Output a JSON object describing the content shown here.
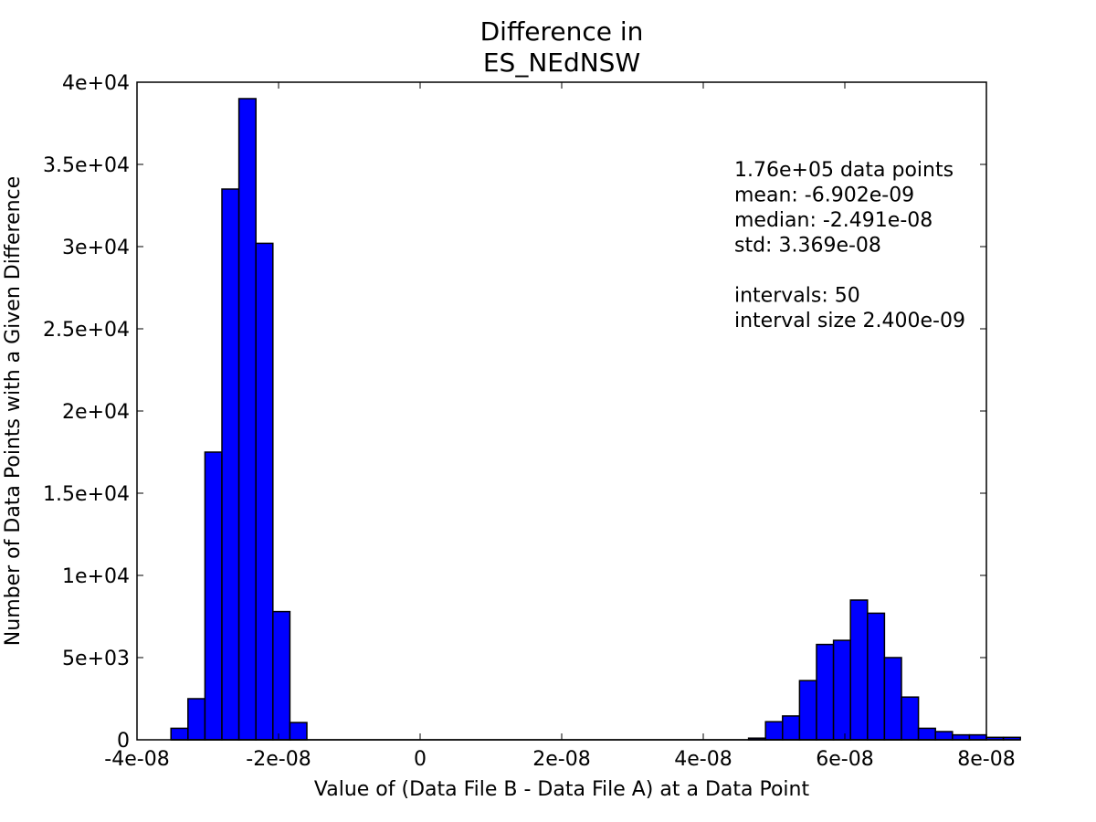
{
  "chart_data": {
    "type": "bar",
    "title_lines": [
      "Difference in",
      "ES_NEdNSW"
    ],
    "xlabel": "Value of (Data File B - Data File A) at a Data Point",
    "ylabel": "Number of Data Points with a Given Difference",
    "xlim": [
      -4e-08,
      8e-08
    ],
    "ylim": [
      0,
      40000
    ],
    "x_ticks": [
      {
        "value": -4e-08,
        "label": "-4e-08"
      },
      {
        "value": -2e-08,
        "label": "-2e-08"
      },
      {
        "value": 0,
        "label": "0"
      },
      {
        "value": 2e-08,
        "label": "2e-08"
      },
      {
        "value": 4e-08,
        "label": "4e-08"
      },
      {
        "value": 6e-08,
        "label": "6e-08"
      },
      {
        "value": 8e-08,
        "label": "8e-08"
      }
    ],
    "y_ticks": [
      {
        "value": 0,
        "label": "0"
      },
      {
        "value": 5000,
        "label": "5e+03"
      },
      {
        "value": 10000,
        "label": "1e+04"
      },
      {
        "value": 15000,
        "label": "1.5e+04"
      },
      {
        "value": 20000,
        "label": "2e+04"
      },
      {
        "value": 25000,
        "label": "2.5e+04"
      },
      {
        "value": 30000,
        "label": "3e+04"
      },
      {
        "value": 35000,
        "label": "3.5e+04"
      },
      {
        "value": 40000,
        "label": "4e+04"
      }
    ],
    "bin_start": -3.52e-08,
    "bin_width": 2.4e-09,
    "counts": [
      700,
      2500,
      17500,
      33500,
      39000,
      30200,
      7800,
      1050,
      0,
      0,
      0,
      0,
      0,
      0,
      0,
      0,
      0,
      0,
      0,
      0,
      0,
      0,
      0,
      0,
      0,
      0,
      0,
      0,
      0,
      0,
      0,
      0,
      0,
      0,
      100,
      1100,
      1450,
      3600,
      5800,
      6050,
      8500,
      7700,
      5000,
      2600,
      700,
      500,
      300,
      300,
      150,
      150
    ],
    "colors": {
      "bar": "#0000ff",
      "edge": "#000000"
    },
    "annotation_lines": [
      "1.76e+05 data points",
      "mean: -6.902e-09",
      "median: -2.491e-08",
      "std: 3.369e-08",
      "",
      "intervals: 50",
      "interval size 2.400e-09"
    ]
  }
}
